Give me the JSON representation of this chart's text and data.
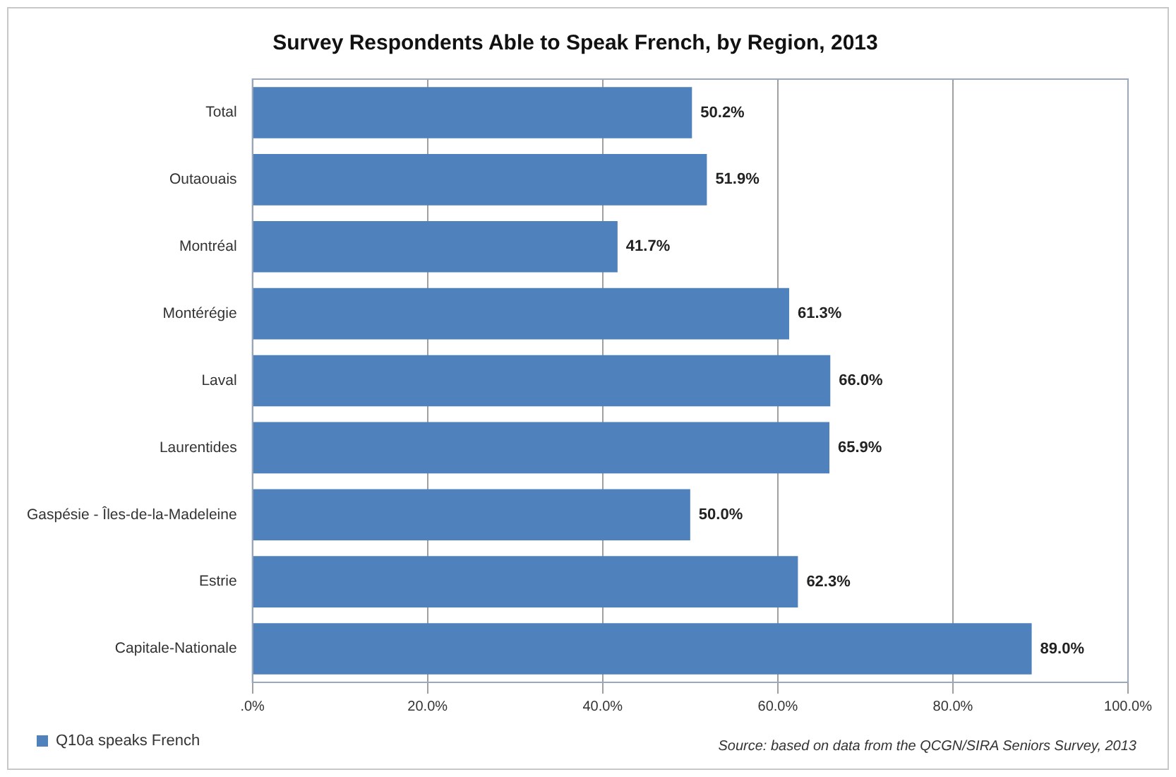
{
  "chart_data": {
    "type": "bar",
    "orientation": "horizontal",
    "title": "Survey Respondents Able to Speak French, by Region, 2013",
    "categories": [
      "Total",
      "Outaouais",
      "Montréal",
      "Montérégie",
      "Laval",
      "Laurentides",
      "Gaspésie - Îles-de-la-Madeleine",
      "Estrie",
      "Capitale-Nationale"
    ],
    "series": [
      {
        "name": "Q10a speaks French",
        "color": "#4f81bd",
        "values": [
          50.2,
          51.9,
          41.7,
          61.3,
          66.0,
          65.9,
          50.0,
          62.3,
          89.0
        ],
        "value_labels": [
          "50.2%",
          "51.9%",
          "41.7%",
          "61.3%",
          "66.0%",
          "65.9%",
          "50.0%",
          "62.3%",
          "89.0%"
        ]
      }
    ],
    "xlim": [
      0,
      100
    ],
    "xticks": [
      {
        "value": 0,
        "label": ".0%"
      },
      {
        "value": 20,
        "label": "20.0%"
      },
      {
        "value": 40,
        "label": "40.0%"
      },
      {
        "value": 60,
        "label": "60.0%"
      },
      {
        "value": 80,
        "label": "80.0%"
      },
      {
        "value": 100,
        "label": "100.0%"
      }
    ],
    "grid": "x",
    "legend": "bottom left",
    "annotations": [
      "Source:  based on data from the QCGN/SIRA Seniors Survey, 2013"
    ]
  }
}
